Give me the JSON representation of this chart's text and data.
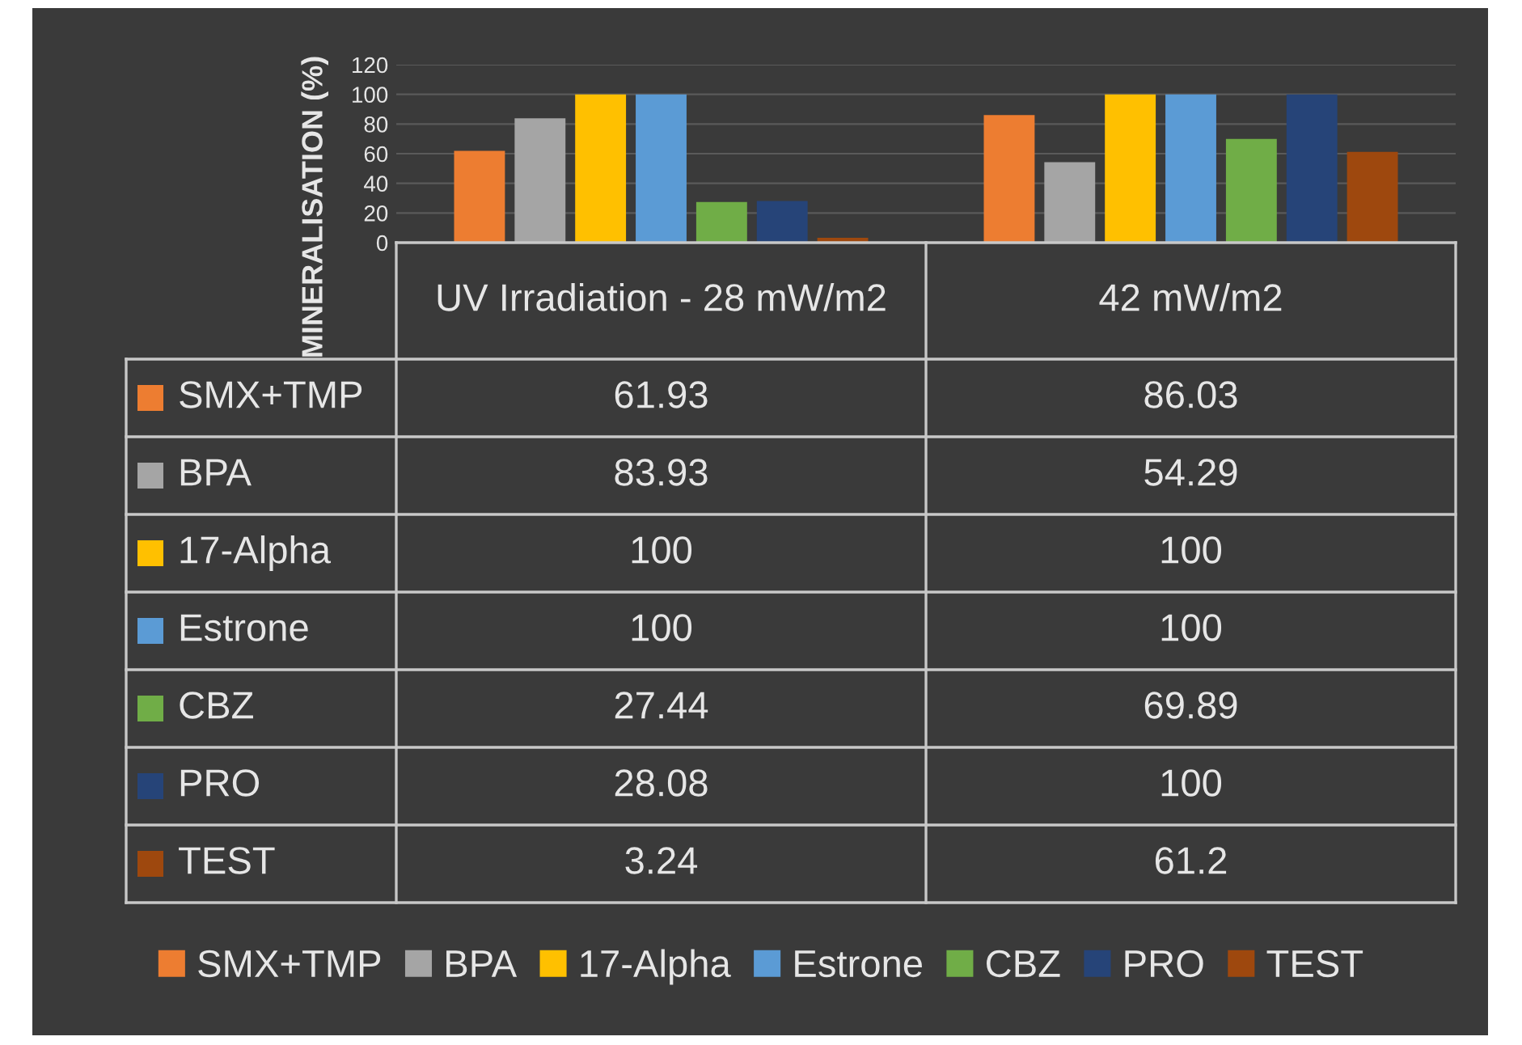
{
  "chart_data": {
    "type": "bar",
    "ylabel": "MINERALISATION (%)",
    "categories": [
      "UV Irradiation - 28 mW/m2",
      "42 mW/m2"
    ],
    "series": [
      {
        "name": "SMX+TMP",
        "color": "#ed7d31",
        "values": [
          61.93,
          86.03
        ]
      },
      {
        "name": "BPA",
        "color": "#a5a5a5",
        "values": [
          83.93,
          54.29
        ]
      },
      {
        "name": "17-Alpha",
        "color": "#ffc000",
        "values": [
          100,
          100
        ]
      },
      {
        "name": "Estrone",
        "color": "#5b9bd5",
        "values": [
          100,
          100
        ]
      },
      {
        "name": "CBZ",
        "color": "#70ad47",
        "values": [
          27.44,
          69.89
        ]
      },
      {
        "name": "PRO",
        "color": "#264478",
        "values": [
          28.08,
          100
        ]
      },
      {
        "name": "TEST",
        "color": "#9e480e",
        "values": [
          3.24,
          61.2
        ]
      }
    ],
    "ylim": [
      0,
      120
    ],
    "yticks": [
      0,
      20,
      40,
      60,
      80,
      100,
      120
    ],
    "grid": "y",
    "data_labels": true,
    "legend": "bottom"
  }
}
